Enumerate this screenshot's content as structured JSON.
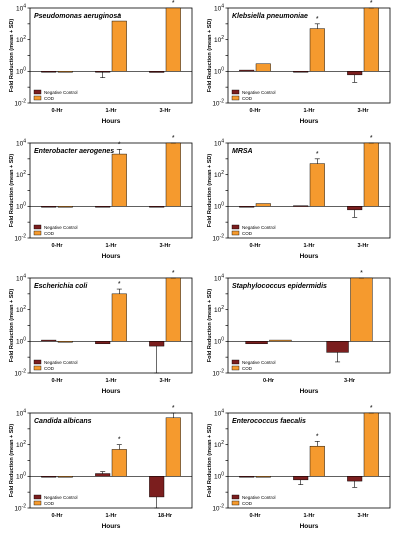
{
  "chart_data": [
    {
      "type": "bar",
      "title": "Pseudomonas aeruginosa",
      "xlabel": "Hours",
      "ylabel": "Fold Reduction (mean + SD)",
      "yscale": "log",
      "ylim_exp": [
        -2,
        4
      ],
      "yticks": [
        "10^4",
        "10^2",
        "10^0",
        "10^-2"
      ],
      "categories": [
        "0-Hr",
        "1-Hr",
        "3-Hr"
      ],
      "series": [
        {
          "name": "Negative Control",
          "color": "#7b1e1e",
          "values": [
            1,
            0.9,
            0.85
          ],
          "errors": [
            0,
            0.5,
            0
          ]
        },
        {
          "name": "COD",
          "color": "#f59a2e",
          "values": [
            1,
            1500,
            150000
          ],
          "errors": [
            0,
            0,
            0
          ]
        }
      ],
      "significance": [
        "",
        "*",
        "*"
      ],
      "legend_position": "bottom-left"
    },
    {
      "type": "bar",
      "title": "Klebsiella pneumoniae",
      "xlabel": "Hours",
      "ylabel": "Fold Reduction (mean + SD)",
      "yscale": "log",
      "ylim_exp": [
        -2,
        4
      ],
      "yticks": [
        "10^4",
        "10^2",
        "10^0",
        "10^-2"
      ],
      "categories": [
        "0-Hr",
        "1-Hr",
        "3-Hr"
      ],
      "series": [
        {
          "name": "Negative Control",
          "color": "#7b1e1e",
          "values": [
            1.2,
            0.9,
            0.6
          ],
          "errors": [
            0,
            0,
            0.4
          ]
        },
        {
          "name": "COD",
          "color": "#f59a2e",
          "values": [
            3,
            500,
            25000
          ],
          "errors": [
            0,
            500,
            25000
          ]
        }
      ],
      "significance": [
        "",
        "*",
        "*"
      ],
      "legend_position": "bottom-left"
    },
    {
      "type": "bar",
      "title": "Enterobacter aerogenes",
      "xlabel": "Hours",
      "ylabel": "Fold Reduction (mean + SD)",
      "yscale": "log",
      "ylim_exp": [
        -2,
        4
      ],
      "yticks": [
        "10^4",
        "10^2",
        "10^0",
        "10^-2"
      ],
      "categories": [
        "0-Hr",
        "1-Hr",
        "3-Hr"
      ],
      "series": [
        {
          "name": "Negative Control",
          "color": "#7b1e1e",
          "values": [
            1,
            1,
            0.9
          ],
          "errors": [
            0,
            0,
            0
          ]
        },
        {
          "name": "COD",
          "color": "#f59a2e",
          "values": [
            1,
            2000,
            100000
          ],
          "errors": [
            0,
            2000,
            100000
          ]
        }
      ],
      "significance": [
        "",
        "*",
        "*"
      ],
      "legend_position": "bottom-left"
    },
    {
      "type": "bar",
      "title": "MRSA",
      "xlabel": "Hours",
      "ylabel": "Fold Reduction (mean + SD)",
      "yscale": "log",
      "ylim_exp": [
        -2,
        4
      ],
      "yticks": [
        "10^4",
        "10^2",
        "10^0",
        "10^-2"
      ],
      "categories": [
        "0-Hr",
        "1-Hr",
        "3-Hr"
      ],
      "series": [
        {
          "name": "Negative Control",
          "color": "#7b1e1e",
          "values": [
            1,
            1.1,
            0.6
          ],
          "errors": [
            0,
            0,
            0.4
          ]
        },
        {
          "name": "COD",
          "color": "#f59a2e",
          "values": [
            1.5,
            500,
            30000
          ],
          "errors": [
            0,
            500,
            30000
          ]
        }
      ],
      "significance": [
        "",
        "*",
        "*"
      ],
      "legend_position": "bottom-left"
    },
    {
      "type": "bar",
      "title": "Escherichia coli",
      "xlabel": "Hours",
      "ylabel": "Fold Reduction (mean + SD)",
      "yscale": "log",
      "ylim_exp": [
        -2,
        4
      ],
      "yticks": [
        "10^4",
        "10^2",
        "10^0",
        "10^-2"
      ],
      "categories": [
        "0-Hr",
        "1-Hr",
        "3-Hr"
      ],
      "series": [
        {
          "name": "Negative Control",
          "color": "#7b1e1e",
          "values": [
            1.2,
            0.7,
            0.5
          ],
          "errors": [
            0,
            0,
            0.5
          ]
        },
        {
          "name": "COD",
          "color": "#f59a2e",
          "values": [
            1,
            1000,
            20000
          ],
          "errors": [
            0,
            1000,
            20000
          ]
        }
      ],
      "significance": [
        "",
        "*",
        "*"
      ],
      "legend_position": "bottom-left"
    },
    {
      "type": "bar",
      "title": "Staphylococcus epidermidis",
      "xlabel": "Hours",
      "ylabel": "Fold Reduction (mean + SD)",
      "yscale": "log",
      "ylim_exp": [
        -2,
        4
      ],
      "yticks": [
        "10^4",
        "10^2",
        "10^0",
        "10^-2"
      ],
      "categories": [
        "0-Hr",
        "3-Hr"
      ],
      "series": [
        {
          "name": "Negative Control",
          "color": "#7b1e1e",
          "values": [
            0.7,
            0.2
          ],
          "errors": [
            0,
            0.15
          ]
        },
        {
          "name": "COD",
          "color": "#f59a2e",
          "values": [
            1.2,
            100000
          ],
          "errors": [
            0,
            100000
          ]
        }
      ],
      "significance": [
        "",
        "*"
      ],
      "legend_position": "bottom-left"
    },
    {
      "type": "bar",
      "title": "Candida albicans",
      "xlabel": "Hours",
      "ylabel": "Fold Reduction (mean + SD)",
      "yscale": "log",
      "ylim_exp": [
        -2,
        4
      ],
      "yticks": [
        "10^4",
        "10^2",
        "10^0",
        "10^-2"
      ],
      "categories": [
        "0-Hr",
        "1-Hr",
        "18-Hr"
      ],
      "series": [
        {
          "name": "Negative Control",
          "color": "#7b1e1e",
          "values": [
            1,
            1.5,
            0.05
          ],
          "errors": [
            0,
            0.5,
            0.04
          ]
        },
        {
          "name": "COD",
          "color": "#f59a2e",
          "values": [
            1,
            50,
            5000
          ],
          "errors": [
            0,
            50,
            5000
          ]
        }
      ],
      "significance": [
        "",
        "*",
        "*"
      ],
      "legend_position": "bottom-left"
    },
    {
      "type": "bar",
      "title": "Enterococcus faecalis",
      "xlabel": "Hours",
      "ylabel": "Fold Reduction (mean + SD)",
      "yscale": "log",
      "ylim_exp": [
        -2,
        4
      ],
      "yticks": [
        "10^4",
        "10^2",
        "10^0",
        "10^-2"
      ],
      "categories": [
        "0-Hr",
        "1-Hr",
        "3-Hr"
      ],
      "series": [
        {
          "name": "Negative Control",
          "color": "#7b1e1e",
          "values": [
            1,
            0.6,
            0.5
          ],
          "errors": [
            0,
            0.3,
            0.3
          ]
        },
        {
          "name": "COD",
          "color": "#f59a2e",
          "values": [
            1,
            80,
            20000
          ],
          "errors": [
            0,
            80,
            20000
          ]
        }
      ],
      "significance": [
        "",
        "*",
        "*"
      ],
      "legend_position": "bottom-left"
    }
  ]
}
